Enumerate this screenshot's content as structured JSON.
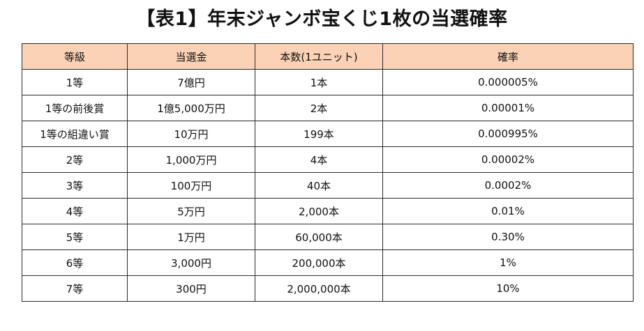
{
  "title": "【表1】年末ジャンボ宝くじ1枚の当選確率",
  "table": {
    "headers": [
      "等級",
      "当選金",
      "本数(1ユニット)",
      "確率"
    ],
    "rows": [
      [
        "1等",
        "7億円",
        "1本",
        "0.000005%"
      ],
      [
        "1等の前後賞",
        "1億5,000万円",
        "2本",
        "0.00001%"
      ],
      [
        "1等の組違い賞",
        "10万円",
        "199本",
        "0.000995%"
      ],
      [
        "2等",
        "1,000万円",
        "4本",
        "0.00002%"
      ],
      [
        "3等",
        "100万円",
        "40本",
        "0.0002%"
      ],
      [
        "4等",
        "5万円",
        "2,000本",
        "0.01%"
      ],
      [
        "5等",
        "1万円",
        "60,000本",
        "0.30%"
      ],
      [
        "6等",
        "3,000円",
        "200,000本",
        "1%"
      ],
      [
        "7等",
        "300円",
        "2,000,000本",
        "10%"
      ]
    ]
  },
  "colors": {
    "header_background": "#fbd2b6",
    "border": "#2a2a2a",
    "text": "#111111"
  }
}
